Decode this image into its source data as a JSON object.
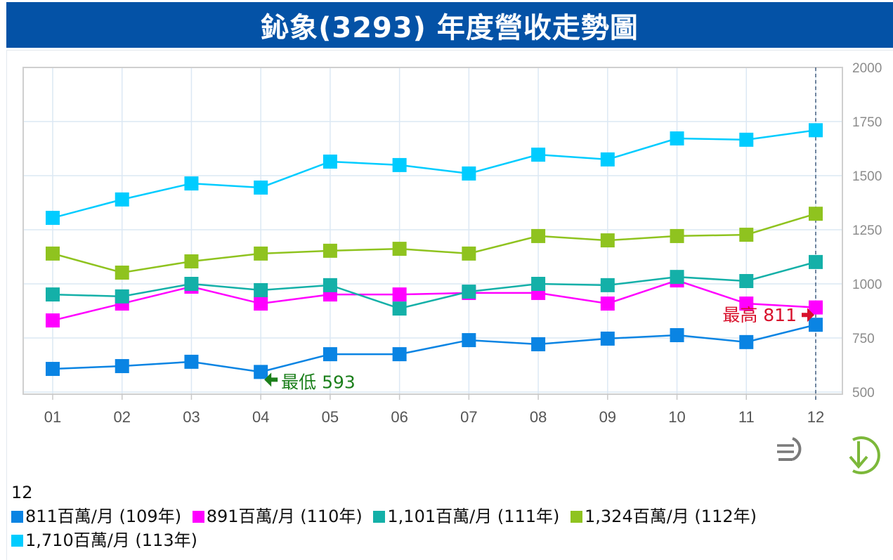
{
  "title": "鈊象(3293) 年度營收走勢圖",
  "chart_data": {
    "type": "line",
    "title": "鈊象(3293) 年度營收走勢圖",
    "xlabel": "",
    "ylabel": "",
    "x": [
      "01",
      "02",
      "03",
      "04",
      "05",
      "06",
      "07",
      "08",
      "09",
      "10",
      "11",
      "12"
    ],
    "ylim": [
      500,
      2000
    ],
    "yticks": [
      "500",
      "750",
      "1000",
      "1250",
      "1500",
      "1750",
      "2000"
    ],
    "grid": true,
    "y_axis_side": "right",
    "marker": "square",
    "series": [
      {
        "name": "109年",
        "color": "#0a84e3",
        "values": [
          607,
          620,
          640,
          593,
          675,
          675,
          740,
          721,
          747,
          763,
          731,
          811
        ]
      },
      {
        "name": "110年",
        "color": "#ff00ff",
        "values": [
          831,
          909,
          987,
          909,
          951,
          951,
          958,
          958,
          909,
          1016,
          909,
          891
        ]
      },
      {
        "name": "111年",
        "color": "#14b0a8",
        "values": [
          951,
          942,
          1000,
          971,
          994,
          886,
          964,
          1000,
          994,
          1032,
          1013,
          1101
        ]
      },
      {
        "name": "112年",
        "color": "#8fc31f",
        "values": [
          1140,
          1052,
          1104,
          1140,
          1153,
          1162,
          1140,
          1221,
          1201,
          1221,
          1227,
          1324
        ]
      },
      {
        "name": "113年",
        "color": "#00ccff",
        "values": [
          1305,
          1390,
          1464,
          1445,
          1565,
          1549,
          1510,
          1597,
          1575,
          1672,
          1666,
          1710
        ]
      }
    ],
    "crosshair_x": "12",
    "annotations": [
      {
        "text": "最高 811",
        "x": "12",
        "value": 811,
        "color": "#d8112c",
        "arrow": "right"
      },
      {
        "text": "最低 593",
        "x": "04",
        "value": 593,
        "color": "#1b7f1b",
        "arrow": "left"
      }
    ],
    "legend_placement": "bottom"
  },
  "legend": {
    "month": "12",
    "items": [
      {
        "label": "811百萬/月 (109年)",
        "color": "#0a84e3"
      },
      {
        "label": "891百萬/月 (110年)",
        "color": "#ff00ff"
      },
      {
        "label": "1,101百萬/月 (111年)",
        "color": "#14b0a8"
      },
      {
        "label": "1,324百萬/月 (112年)",
        "color": "#8fc31f"
      },
      {
        "label": "1,710百萬/月 (113年)",
        "color": "#00ccff"
      }
    ]
  },
  "controls": {
    "menu_icon": "menu-icon",
    "download_icon": "download-icon"
  }
}
